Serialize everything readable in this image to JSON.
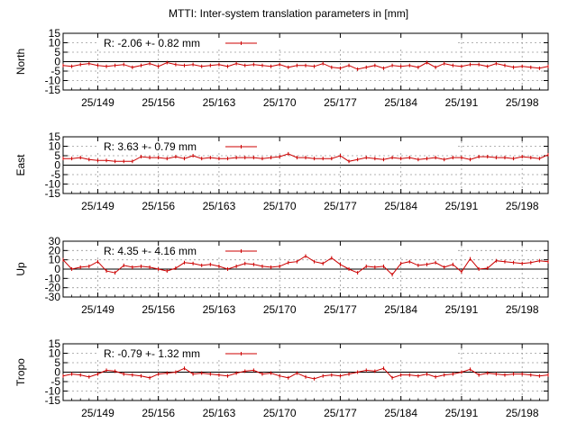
{
  "title": "MTTI: Inter-system translation parameters in [mm]",
  "colors": {
    "series": "#cc0000",
    "zero_line": "#000000",
    "grid": "#9a9a9a",
    "axis": "#000000"
  },
  "chart_data": [
    {
      "type": "line",
      "ylabel": "North",
      "ylim": [
        -15,
        15
      ],
      "yticks": [
        15,
        10,
        5,
        0,
        -5,
        -10,
        -15
      ],
      "xlim": [
        145,
        201
      ],
      "xticks": [
        149,
        156,
        163,
        170,
        177,
        184,
        191,
        198
      ],
      "xtick_labels": [
        "25/149",
        "25/156",
        "25/163",
        "25/170",
        "25/177",
        "25/184",
        "25/191",
        "25/198"
      ],
      "legend_text": "R:  -2.06 +- 0.82 mm",
      "legend_position": "top-left",
      "x": [
        145,
        146,
        147,
        148,
        149,
        150,
        151,
        152,
        153,
        154,
        155,
        156,
        157,
        158,
        159,
        160,
        161,
        162,
        163,
        164,
        165,
        166,
        167,
        168,
        169,
        170,
        171,
        172,
        173,
        174,
        175,
        176,
        177,
        178,
        179,
        180,
        181,
        182,
        183,
        184,
        185,
        186,
        187,
        188,
        189,
        190,
        191,
        192,
        193,
        194,
        195,
        196,
        197,
        198,
        199,
        200,
        201
      ],
      "y": [
        -2,
        -2.5,
        -1.5,
        -1,
        -2,
        -2.5,
        -2,
        -1.5,
        -3,
        -2,
        -1,
        -2.5,
        -0.5,
        -1.5,
        -2,
        -1.5,
        -2.5,
        -2,
        -1.5,
        -2.5,
        -1,
        -2,
        -1.5,
        -2,
        -2.5,
        -1.5,
        -3,
        -2,
        -2,
        -2.5,
        -1,
        -3,
        -3.5,
        -2,
        -4,
        -3,
        -2,
        -3.5,
        -2,
        -2.5,
        -2,
        -3,
        -0.5,
        -3,
        -1,
        -2,
        -2.5,
        -1.5,
        -1.5,
        -2.5,
        -1,
        -2,
        -3,
        -2.5,
        -3,
        -3.5,
        -2.5
      ]
    },
    {
      "type": "line",
      "ylabel": "East",
      "ylim": [
        -15,
        15
      ],
      "yticks": [
        15,
        10,
        5,
        0,
        -5,
        -10,
        -15
      ],
      "xlim": [
        145,
        201
      ],
      "xticks": [
        149,
        156,
        163,
        170,
        177,
        184,
        191,
        198
      ],
      "xtick_labels": [
        "25/149",
        "25/156",
        "25/163",
        "25/170",
        "25/177",
        "25/184",
        "25/191",
        "25/198"
      ],
      "legend_text": "R:   3.63 +- 0.79 mm",
      "legend_position": "top-left",
      "x": [
        145,
        146,
        147,
        148,
        149,
        150,
        151,
        152,
        153,
        154,
        155,
        156,
        157,
        158,
        159,
        160,
        161,
        162,
        163,
        164,
        165,
        166,
        167,
        168,
        169,
        170,
        171,
        172,
        173,
        174,
        175,
        176,
        177,
        178,
        179,
        180,
        181,
        182,
        183,
        184,
        185,
        186,
        187,
        188,
        189,
        190,
        191,
        192,
        193,
        194,
        195,
        196,
        197,
        198,
        199,
        200,
        201
      ],
      "y": [
        3.5,
        3.5,
        4,
        3,
        2.5,
        2.5,
        2,
        2,
        2,
        4.5,
        4,
        4,
        3.5,
        4.5,
        3.5,
        5,
        3.5,
        4,
        3.5,
        3.5,
        4,
        4,
        4,
        3.5,
        4,
        4.5,
        6,
        4,
        4,
        3.5,
        3.5,
        3.5,
        5,
        2,
        3,
        4,
        3.5,
        3,
        4,
        3.5,
        4,
        3,
        3.5,
        4,
        3,
        4,
        4,
        3,
        4.5,
        4.5,
        4,
        4,
        3.5,
        4.5,
        4,
        3.5,
        5.5
      ]
    },
    {
      "type": "line",
      "ylabel": "Up",
      "ylim": [
        -30,
        30
      ],
      "yticks": [
        30,
        20,
        10,
        0,
        -10,
        -20,
        -30
      ],
      "xlim": [
        145,
        201
      ],
      "xticks": [
        149,
        156,
        163,
        170,
        177,
        184,
        191,
        198
      ],
      "xtick_labels": [
        "25/149",
        "25/156",
        "25/163",
        "25/170",
        "25/177",
        "25/184",
        "25/191",
        "25/198"
      ],
      "legend_text": "R:   4.35 +- 4.16 mm",
      "legend_position": "top-left",
      "x": [
        145,
        146,
        147,
        148,
        149,
        150,
        151,
        152,
        153,
        154,
        155,
        156,
        157,
        158,
        159,
        160,
        161,
        162,
        163,
        164,
        165,
        166,
        167,
        168,
        169,
        170,
        171,
        172,
        173,
        174,
        175,
        176,
        177,
        178,
        179,
        180,
        181,
        182,
        183,
        184,
        185,
        186,
        187,
        188,
        189,
        190,
        191,
        192,
        193,
        194,
        195,
        196,
        197,
        198,
        199,
        200,
        201
      ],
      "y": [
        10,
        0,
        2,
        3,
        8,
        -2,
        -4,
        4,
        2,
        3,
        2,
        0,
        -2,
        1,
        7,
        6,
        4,
        5,
        3,
        0,
        3,
        6,
        5,
        3,
        2,
        3,
        7,
        8,
        14,
        8,
        6,
        12,
        5,
        0,
        -4,
        3,
        2,
        3,
        -6,
        6,
        8,
        4,
        5,
        7,
        2,
        5,
        -3,
        11,
        0,
        1,
        9,
        8,
        7,
        6,
        7,
        9,
        8
      ]
    },
    {
      "type": "line",
      "ylabel": "Tropo",
      "ylim": [
        -15,
        15
      ],
      "yticks": [
        15,
        10,
        5,
        0,
        -5,
        -10,
        -15
      ],
      "xlim": [
        145,
        201
      ],
      "xticks": [
        149,
        156,
        163,
        170,
        177,
        184,
        191,
        198
      ],
      "xtick_labels": [
        "25/149",
        "25/156",
        "25/163",
        "25/170",
        "25/177",
        "25/184",
        "25/191",
        "25/198"
      ],
      "legend_text": "R:  -0.79 +- 1.32 mm",
      "legend_position": "top-left",
      "x": [
        145,
        146,
        147,
        148,
        149,
        150,
        151,
        152,
        153,
        154,
        155,
        156,
        157,
        158,
        159,
        160,
        161,
        162,
        163,
        164,
        165,
        166,
        167,
        168,
        169,
        170,
        171,
        172,
        173,
        174,
        175,
        176,
        177,
        178,
        179,
        180,
        181,
        182,
        183,
        184,
        185,
        186,
        187,
        188,
        189,
        190,
        191,
        192,
        193,
        194,
        195,
        196,
        197,
        198,
        199,
        200,
        201
      ],
      "y": [
        -2,
        -1,
        -1.5,
        -2.5,
        -1,
        1,
        0.5,
        -1,
        -1.5,
        -2,
        -3,
        -1,
        -0.5,
        0,
        2,
        -1,
        -0.5,
        -1,
        -1.5,
        -2,
        -0.5,
        0.5,
        1,
        -1,
        -0.5,
        -2,
        -3,
        -0.5,
        -2.5,
        -3.5,
        -2,
        -1.5,
        -2,
        -1,
        0,
        1,
        0.5,
        2,
        -3,
        -1.5,
        -1.5,
        -2,
        -1,
        -2.5,
        -1.5,
        -1,
        0,
        1.5,
        -1.5,
        -0.5,
        -1,
        -1.5,
        -1,
        -1,
        -1.5,
        -2,
        -1.5
      ]
    }
  ]
}
